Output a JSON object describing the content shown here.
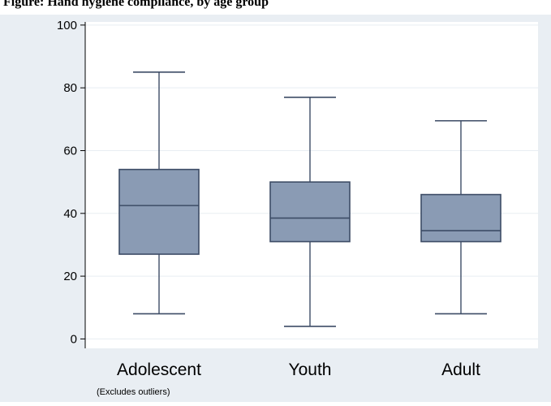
{
  "page": {
    "caption": "Figure: Hand hygiene compliance, by age group"
  },
  "colors": {
    "background": "#e9eef3",
    "plot_area": "#ffffff",
    "box_fill": "#8a9bb4",
    "box_stroke": "#3d4c66",
    "grid": "#e8edf2",
    "axis": "#000000"
  },
  "chart_data": {
    "type": "box",
    "title": "",
    "xlabel": "",
    "ylabel": "",
    "ylim": [
      -3,
      101
    ],
    "yticks": [
      0,
      20,
      40,
      60,
      80,
      100
    ],
    "ytick_labels": [
      "0",
      "20",
      "40",
      "60",
      "80",
      "100"
    ],
    "grid": true,
    "note": "(Excludes outliers)",
    "categories": [
      "Adolescent",
      "Youth",
      "Adult"
    ],
    "boxes": [
      {
        "category": "Adolescent",
        "min": 8,
        "q1": 27,
        "median": 42.5,
        "q3": 54,
        "max": 85
      },
      {
        "category": "Youth",
        "min": 4,
        "q1": 31,
        "median": 38.5,
        "q3": 50,
        "max": 77
      },
      {
        "category": "Adult",
        "min": 8,
        "q1": 31,
        "median": 34.5,
        "q3": 46,
        "max": 69.5
      }
    ]
  }
}
